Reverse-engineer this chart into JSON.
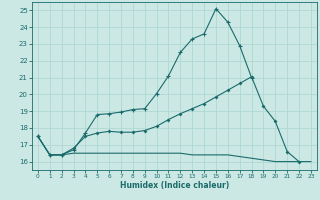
{
  "title": "",
  "xlabel": "Humidex (Indice chaleur)",
  "background_color": "#cce8e4",
  "grid_color": "#b0d8d4",
  "line_color": "#1a6b6b",
  "xlim": [
    -0.5,
    23.5
  ],
  "ylim": [
    15.5,
    25.5
  ],
  "yticks": [
    16,
    17,
    18,
    19,
    20,
    21,
    22,
    23,
    24,
    25
  ],
  "xticks": [
    0,
    1,
    2,
    3,
    4,
    5,
    6,
    7,
    8,
    9,
    10,
    11,
    12,
    13,
    14,
    15,
    16,
    17,
    18,
    19,
    20,
    21,
    22,
    23
  ],
  "line1_x": [
    0,
    1,
    2,
    3,
    4,
    5,
    6,
    7,
    8,
    9,
    10,
    11,
    12,
    13,
    14,
    15,
    16,
    17,
    18
  ],
  "line1_y": [
    17.5,
    16.4,
    16.4,
    16.7,
    17.7,
    18.8,
    18.85,
    18.95,
    19.1,
    19.15,
    20.05,
    21.1,
    22.5,
    23.3,
    23.6,
    25.1,
    24.3,
    22.9,
    21.0
  ],
  "line2_x": [
    0,
    1,
    2,
    3,
    4,
    5,
    6,
    7,
    8,
    9,
    10,
    11,
    12,
    13,
    14,
    15,
    16,
    17,
    18,
    19,
    20,
    21,
    22
  ],
  "line2_y": [
    17.5,
    16.4,
    16.4,
    16.8,
    17.5,
    17.7,
    17.8,
    17.75,
    17.75,
    17.85,
    18.1,
    18.5,
    18.85,
    19.15,
    19.45,
    19.85,
    20.25,
    20.65,
    21.05,
    19.3,
    18.4,
    16.6,
    16.0
  ],
  "line3_x": [
    0,
    1,
    2,
    3,
    4,
    5,
    6,
    7,
    8,
    9,
    10,
    11,
    12,
    13,
    14,
    15,
    16,
    17,
    18,
    19,
    20,
    21,
    22,
    23
  ],
  "line3_y": [
    17.5,
    16.4,
    16.4,
    16.5,
    16.5,
    16.5,
    16.5,
    16.5,
    16.5,
    16.5,
    16.5,
    16.5,
    16.5,
    16.4,
    16.4,
    16.4,
    16.4,
    16.3,
    16.2,
    16.1,
    16.0,
    16.0,
    16.0,
    16.0
  ]
}
